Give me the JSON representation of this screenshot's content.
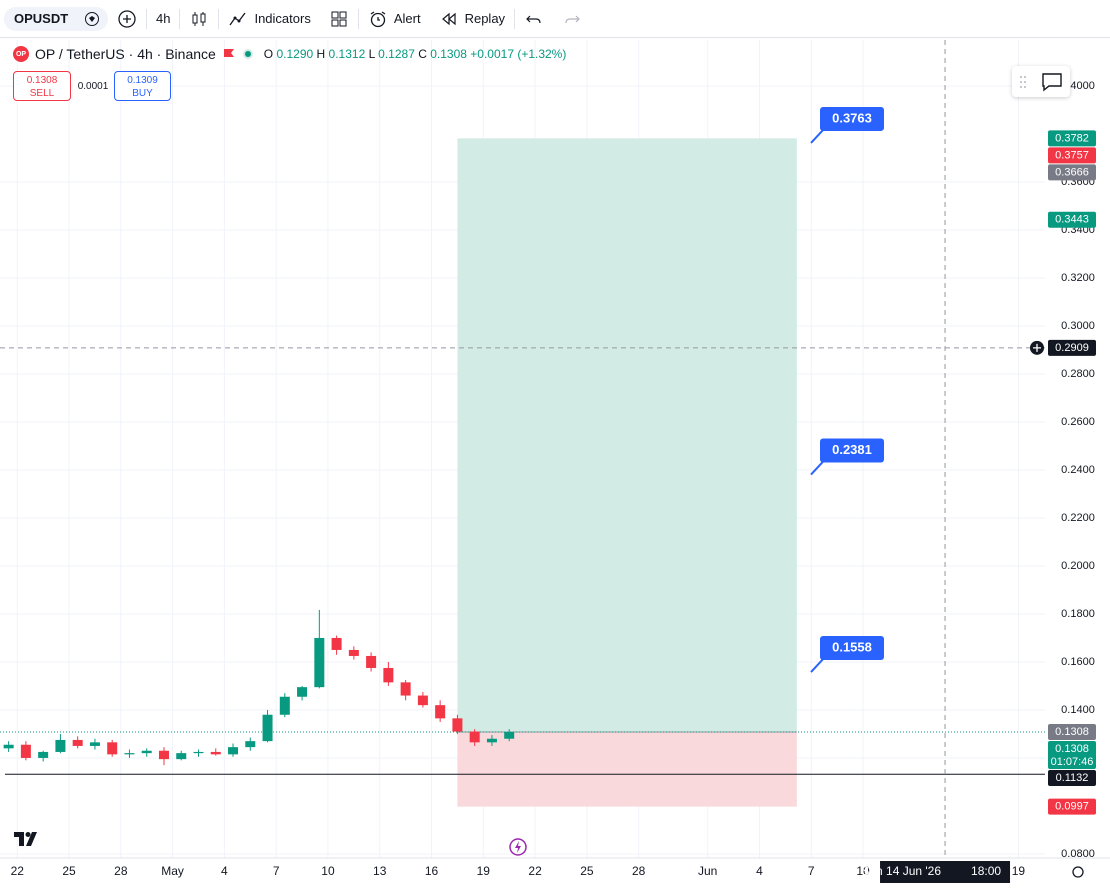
{
  "toolbar": {
    "symbol": "OPUSDT",
    "interval": "4h",
    "indicators": "Indicators",
    "alert": "Alert",
    "replay": "Replay"
  },
  "legend": {
    "logo": "OP",
    "title": "OP / TetherUS · 4h · Binance",
    "ohlc": [
      {
        "label": "O",
        "value": "0.1290"
      },
      {
        "label": "H",
        "value": "0.1312"
      },
      {
        "label": "L",
        "value": "0.1287"
      },
      {
        "label": "C",
        "value": "0.1308"
      }
    ],
    "change": "+0.0017 (+1.32%)"
  },
  "trade": {
    "sell_price": "0.1308",
    "sell": "SELL",
    "spread": "0.0001",
    "buy_price": "0.1309",
    "buy": "BUY"
  },
  "chart_data": {
    "type": "candlestick",
    "x": [
      "2026-04-21",
      "2026-04-22",
      "2026-04-23",
      "2026-04-24",
      "2026-04-25",
      "2026-04-26",
      "2026-04-27",
      "2026-04-28",
      "2026-04-29",
      "2026-04-30",
      "2026-05-01",
      "2026-05-02",
      "2026-05-03",
      "2026-05-04",
      "2026-05-05",
      "2026-05-06",
      "2026-05-07",
      "2026-05-08",
      "2026-05-09",
      "2026-05-10",
      "2026-05-11",
      "2026-05-12",
      "2026-05-13",
      "2026-05-14",
      "2026-05-15",
      "2026-05-16",
      "2026-05-17",
      "2026-05-18",
      "2026-05-19",
      "2026-05-20"
    ],
    "open": [
      0.124,
      0.1255,
      0.12,
      0.1225,
      0.1275,
      0.125,
      0.1265,
      0.1215,
      0.122,
      0.123,
      0.1195,
      0.122,
      0.1225,
      0.1215,
      0.1245,
      0.127,
      0.138,
      0.1455,
      0.1495,
      0.17,
      0.165,
      0.1625,
      0.1575,
      0.1515,
      0.146,
      0.142,
      0.1365,
      0.131,
      0.1265,
      0.128
    ],
    "high": [
      0.127,
      0.127,
      0.123,
      0.13,
      0.129,
      0.128,
      0.1275,
      0.1235,
      0.124,
      0.1245,
      0.123,
      0.1235,
      0.124,
      0.126,
      0.1285,
      0.14,
      0.147,
      0.15,
      0.1817,
      0.171,
      0.1665,
      0.164,
      0.16,
      0.1525,
      0.1475,
      0.144,
      0.138,
      0.132,
      0.1295,
      0.132
    ],
    "low": [
      0.1225,
      0.119,
      0.1185,
      0.122,
      0.124,
      0.1235,
      0.1205,
      0.12,
      0.1205,
      0.117,
      0.119,
      0.1205,
      0.121,
      0.1205,
      0.123,
      0.1265,
      0.137,
      0.144,
      0.149,
      0.163,
      0.161,
      0.156,
      0.15,
      0.144,
      0.141,
      0.135,
      0.13,
      0.125,
      0.125,
      0.127
    ],
    "close": [
      0.1255,
      0.12,
      0.1225,
      0.1275,
      0.125,
      0.1265,
      0.1215,
      0.122,
      0.123,
      0.1195,
      0.122,
      0.1225,
      0.1215,
      0.1245,
      0.127,
      0.138,
      0.1455,
      0.1495,
      0.17,
      0.165,
      0.1625,
      0.1575,
      0.1515,
      0.146,
      0.142,
      0.1365,
      0.131,
      0.1265,
      0.128,
      0.1308
    ],
    "up_color": "#089981",
    "down_color": "#f23645",
    "xlim": [
      "2026-04-21T00:00",
      "2026-06-20T13:00"
    ],
    "xticks": [
      {
        "value": "2026-04-22",
        "label": "22"
      },
      {
        "value": "2026-04-25",
        "label": "25"
      },
      {
        "value": "2026-04-28",
        "label": "28"
      },
      {
        "value": "2026-05-01",
        "label": "May"
      },
      {
        "value": "2026-05-04",
        "label": "4"
      },
      {
        "value": "2026-05-07",
        "label": "7"
      },
      {
        "value": "2026-05-10",
        "label": "10"
      },
      {
        "value": "2026-05-13",
        "label": "13"
      },
      {
        "value": "2026-05-16",
        "label": "16"
      },
      {
        "value": "2026-05-19",
        "label": "19"
      },
      {
        "value": "2026-05-22",
        "label": "22"
      },
      {
        "value": "2026-05-25",
        "label": "25"
      },
      {
        "value": "2026-05-28",
        "label": "28"
      },
      {
        "value": "2026-06-01",
        "label": "Jun"
      },
      {
        "value": "2026-06-04",
        "label": "4"
      },
      {
        "value": "2026-06-07",
        "label": "7"
      },
      {
        "value": "2026-06-10",
        "label": "10"
      },
      {
        "value": "2026-06-19",
        "label": "19"
      }
    ],
    "ylim": [
      0.0783,
      0.4192
    ],
    "yticks": [
      {
        "value": 0.08,
        "label": "0.0800"
      },
      {
        "value": 0.12,
        "label": "0.1200"
      },
      {
        "value": 0.14,
        "label": "0.1400"
      },
      {
        "value": 0.16,
        "label": "0.1600"
      },
      {
        "value": 0.18,
        "label": "0.1800"
      },
      {
        "value": 0.2,
        "label": "0.2000"
      },
      {
        "value": 0.22,
        "label": "0.2200"
      },
      {
        "value": 0.24,
        "label": "0.2400"
      },
      {
        "value": 0.26,
        "label": "0.2600"
      },
      {
        "value": 0.28,
        "label": "0.2800"
      },
      {
        "value": 0.3,
        "label": "0.3000"
      },
      {
        "value": 0.32,
        "label": "0.3200"
      },
      {
        "value": 0.34,
        "label": "0.3400"
      },
      {
        "value": 0.36,
        "label": "0.3600"
      },
      {
        "value": 0.4,
        "label": "0.4000"
      }
    ],
    "grid": true,
    "position": {
      "entry": 0.1308,
      "target": 0.3782,
      "stop": 0.0997,
      "start": "2026-05-17T12:00",
      "end": "2026-06-06T04:00",
      "profit_color": "#d2ebe5",
      "loss_color": "#f9d9dc"
    },
    "notes": [
      {
        "value": 0.3763,
        "label": "0.3763"
      },
      {
        "value": 0.2381,
        "label": "0.2381"
      },
      {
        "value": 0.1558,
        "label": "0.1558"
      }
    ],
    "hlines": [
      {
        "value": 0.1132,
        "color": "#131722"
      }
    ],
    "crosshair": {
      "price": 0.2909,
      "price_label": "0.2909",
      "time": "2026-06-14T18:00",
      "date_label": "Sun 14 Jun '26",
      "time_label": "18:00"
    },
    "price_labels": [
      {
        "value": 0.3782,
        "label": "0.3782",
        "color": "#089981"
      },
      {
        "value": 0.3757,
        "label": "0.3757",
        "color": "#f23645"
      },
      {
        "value": 0.3666,
        "label": "0.3666",
        "color": "#787b86"
      },
      {
        "value": 0.3443,
        "label": "0.3443",
        "color": "#089981"
      },
      {
        "value": 0.1308,
        "label": "0.1308",
        "color": "#787b86"
      },
      {
        "value": 0.1308,
        "label": "0.1308",
        "color": "#089981",
        "sub": "01:07:46"
      },
      {
        "value": 0.1132,
        "label": "0.1132",
        "color": "#131722"
      },
      {
        "value": 0.0997,
        "label": "0.0997",
        "color": "#f23645"
      }
    ]
  }
}
